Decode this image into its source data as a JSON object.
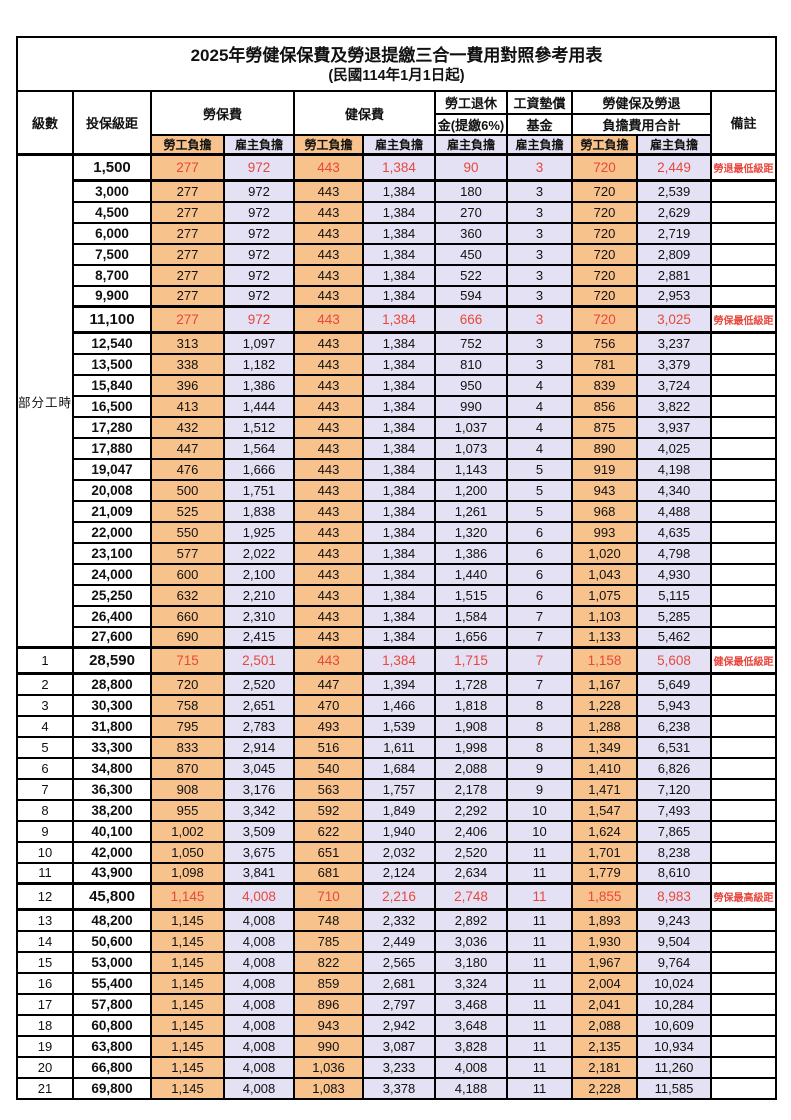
{
  "title": "2025年勞健保保費及勞退提繳三合一費用對照參考用表",
  "subtitle": "(民國114年1月1日起)",
  "header": {
    "level": "級數",
    "bracket": "投保級距",
    "labor_insurance": "勞保費",
    "health_insurance": "健保費",
    "pension_lines": [
      "勞工退休",
      "金(提繳6%)"
    ],
    "fund_lines": [
      "工資墊償",
      "基金"
    ],
    "total_lines": [
      "勞健保及勞退",
      "負擔費用合計"
    ],
    "note": "備註",
    "employee": "勞工負擔",
    "employer": "雇主負擔"
  },
  "part_time_label": "部分工時",
  "colors": {
    "employee_bg": "#F8C28C",
    "employer_bg": "#E3E1F3",
    "red_text": "#E8473D",
    "border": "#000000"
  },
  "rows": [
    {
      "lv": "",
      "br": "1,500",
      "v": [
        "277",
        "972",
        "443",
        "1,384",
        "90",
        "3",
        "720",
        "2,449"
      ],
      "note": "勞退最低級距",
      "red": true,
      "hl": true
    },
    {
      "lv": "",
      "br": "3,000",
      "v": [
        "277",
        "972",
        "443",
        "1,384",
        "180",
        "3",
        "720",
        "2,539"
      ],
      "note": ""
    },
    {
      "lv": "",
      "br": "4,500",
      "v": [
        "277",
        "972",
        "443",
        "1,384",
        "270",
        "3",
        "720",
        "2,629"
      ],
      "note": ""
    },
    {
      "lv": "",
      "br": "6,000",
      "v": [
        "277",
        "972",
        "443",
        "1,384",
        "360",
        "3",
        "720",
        "2,719"
      ],
      "note": ""
    },
    {
      "lv": "",
      "br": "7,500",
      "v": [
        "277",
        "972",
        "443",
        "1,384",
        "450",
        "3",
        "720",
        "2,809"
      ],
      "note": ""
    },
    {
      "lv": "",
      "br": "8,700",
      "v": [
        "277",
        "972",
        "443",
        "1,384",
        "522",
        "3",
        "720",
        "2,881"
      ],
      "note": ""
    },
    {
      "lv": "",
      "br": "9,900",
      "v": [
        "277",
        "972",
        "443",
        "1,384",
        "594",
        "3",
        "720",
        "2,953"
      ],
      "note": ""
    },
    {
      "lv": "",
      "br": "11,100",
      "v": [
        "277",
        "972",
        "443",
        "1,384",
        "666",
        "3",
        "720",
        "3,025"
      ],
      "note": "勞保最低級距",
      "red": true,
      "hl": true
    },
    {
      "lv": "",
      "br": "12,540",
      "v": [
        "313",
        "1,097",
        "443",
        "1,384",
        "752",
        "3",
        "756",
        "3,237"
      ],
      "note": ""
    },
    {
      "lv": "",
      "br": "13,500",
      "v": [
        "338",
        "1,182",
        "443",
        "1,384",
        "810",
        "3",
        "781",
        "3,379"
      ],
      "note": ""
    },
    {
      "lv": "",
      "br": "15,840",
      "v": [
        "396",
        "1,386",
        "443",
        "1,384",
        "950",
        "4",
        "839",
        "3,724"
      ],
      "note": ""
    },
    {
      "lv": "",
      "br": "16,500",
      "v": [
        "413",
        "1,444",
        "443",
        "1,384",
        "990",
        "4",
        "856",
        "3,822"
      ],
      "note": ""
    },
    {
      "lv": "",
      "br": "17,280",
      "v": [
        "432",
        "1,512",
        "443",
        "1,384",
        "1,037",
        "4",
        "875",
        "3,937"
      ],
      "note": ""
    },
    {
      "lv": "",
      "br": "17,880",
      "v": [
        "447",
        "1,564",
        "443",
        "1,384",
        "1,073",
        "4",
        "890",
        "4,025"
      ],
      "note": ""
    },
    {
      "lv": "",
      "br": "19,047",
      "v": [
        "476",
        "1,666",
        "443",
        "1,384",
        "1,143",
        "5",
        "919",
        "4,198"
      ],
      "note": ""
    },
    {
      "lv": "",
      "br": "20,008",
      "v": [
        "500",
        "1,751",
        "443",
        "1,384",
        "1,200",
        "5",
        "943",
        "4,340"
      ],
      "note": ""
    },
    {
      "lv": "",
      "br": "21,009",
      "v": [
        "525",
        "1,838",
        "443",
        "1,384",
        "1,261",
        "5",
        "968",
        "4,488"
      ],
      "note": ""
    },
    {
      "lv": "",
      "br": "22,000",
      "v": [
        "550",
        "1,925",
        "443",
        "1,384",
        "1,320",
        "6",
        "993",
        "4,635"
      ],
      "note": ""
    },
    {
      "lv": "",
      "br": "23,100",
      "v": [
        "577",
        "2,022",
        "443",
        "1,384",
        "1,386",
        "6",
        "1,020",
        "4,798"
      ],
      "note": ""
    },
    {
      "lv": "",
      "br": "24,000",
      "v": [
        "600",
        "2,100",
        "443",
        "1,384",
        "1,440",
        "6",
        "1,043",
        "4,930"
      ],
      "note": ""
    },
    {
      "lv": "",
      "br": "25,250",
      "v": [
        "632",
        "2,210",
        "443",
        "1,384",
        "1,515",
        "6",
        "1,075",
        "5,115"
      ],
      "note": ""
    },
    {
      "lv": "",
      "br": "26,400",
      "v": [
        "660",
        "2,310",
        "443",
        "1,384",
        "1,584",
        "7",
        "1,103",
        "5,285"
      ],
      "note": ""
    },
    {
      "lv": "",
      "br": "27,600",
      "v": [
        "690",
        "2,415",
        "443",
        "1,384",
        "1,656",
        "7",
        "1,133",
        "5,462"
      ],
      "note": ""
    },
    {
      "lv": "1",
      "br": "28,590",
      "v": [
        "715",
        "2,501",
        "443",
        "1,384",
        "1,715",
        "7",
        "1,158",
        "5,608"
      ],
      "note": "健保最低級距",
      "red": true,
      "hl": true
    },
    {
      "lv": "2",
      "br": "28,800",
      "v": [
        "720",
        "2,520",
        "447",
        "1,394",
        "1,728",
        "7",
        "1,167",
        "5,649"
      ],
      "note": ""
    },
    {
      "lv": "3",
      "br": "30,300",
      "v": [
        "758",
        "2,651",
        "470",
        "1,466",
        "1,818",
        "8",
        "1,228",
        "5,943"
      ],
      "note": ""
    },
    {
      "lv": "4",
      "br": "31,800",
      "v": [
        "795",
        "2,783",
        "493",
        "1,539",
        "1,908",
        "8",
        "1,288",
        "6,238"
      ],
      "note": ""
    },
    {
      "lv": "5",
      "br": "33,300",
      "v": [
        "833",
        "2,914",
        "516",
        "1,611",
        "1,998",
        "8",
        "1,349",
        "6,531"
      ],
      "note": ""
    },
    {
      "lv": "6",
      "br": "34,800",
      "v": [
        "870",
        "3,045",
        "540",
        "1,684",
        "2,088",
        "9",
        "1,410",
        "6,826"
      ],
      "note": ""
    },
    {
      "lv": "7",
      "br": "36,300",
      "v": [
        "908",
        "3,176",
        "563",
        "1,757",
        "2,178",
        "9",
        "1,471",
        "7,120"
      ],
      "note": ""
    },
    {
      "lv": "8",
      "br": "38,200",
      "v": [
        "955",
        "3,342",
        "592",
        "1,849",
        "2,292",
        "10",
        "1,547",
        "7,493"
      ],
      "note": ""
    },
    {
      "lv": "9",
      "br": "40,100",
      "v": [
        "1,002",
        "3,509",
        "622",
        "1,940",
        "2,406",
        "10",
        "1,624",
        "7,865"
      ],
      "note": ""
    },
    {
      "lv": "10",
      "br": "42,000",
      "v": [
        "1,050",
        "3,675",
        "651",
        "2,032",
        "2,520",
        "11",
        "1,701",
        "8,238"
      ],
      "note": ""
    },
    {
      "lv": "11",
      "br": "43,900",
      "v": [
        "1,098",
        "3,841",
        "681",
        "2,124",
        "2,634",
        "11",
        "1,779",
        "8,610"
      ],
      "note": ""
    },
    {
      "lv": "12",
      "br": "45,800",
      "v": [
        "1,145",
        "4,008",
        "710",
        "2,216",
        "2,748",
        "11",
        "1,855",
        "8,983"
      ],
      "note": "勞保最高級距",
      "red": true,
      "hl": true
    },
    {
      "lv": "13",
      "br": "48,200",
      "v": [
        "1,145",
        "4,008",
        "748",
        "2,332",
        "2,892",
        "11",
        "1,893",
        "9,243"
      ],
      "note": ""
    },
    {
      "lv": "14",
      "br": "50,600",
      "v": [
        "1,145",
        "4,008",
        "785",
        "2,449",
        "3,036",
        "11",
        "1,930",
        "9,504"
      ],
      "note": ""
    },
    {
      "lv": "15",
      "br": "53,000",
      "v": [
        "1,145",
        "4,008",
        "822",
        "2,565",
        "3,180",
        "11",
        "1,967",
        "9,764"
      ],
      "note": ""
    },
    {
      "lv": "16",
      "br": "55,400",
      "v": [
        "1,145",
        "4,008",
        "859",
        "2,681",
        "3,324",
        "11",
        "2,004",
        "10,024"
      ],
      "note": ""
    },
    {
      "lv": "17",
      "br": "57,800",
      "v": [
        "1,145",
        "4,008",
        "896",
        "2,797",
        "3,468",
        "11",
        "2,041",
        "10,284"
      ],
      "note": ""
    },
    {
      "lv": "18",
      "br": "60,800",
      "v": [
        "1,145",
        "4,008",
        "943",
        "2,942",
        "3,648",
        "11",
        "2,088",
        "10,609"
      ],
      "note": ""
    },
    {
      "lv": "19",
      "br": "63,800",
      "v": [
        "1,145",
        "4,008",
        "990",
        "3,087",
        "3,828",
        "11",
        "2,135",
        "10,934"
      ],
      "note": ""
    },
    {
      "lv": "20",
      "br": "66,800",
      "v": [
        "1,145",
        "4,008",
        "1,036",
        "3,233",
        "4,008",
        "11",
        "2,181",
        "11,260"
      ],
      "note": ""
    },
    {
      "lv": "21",
      "br": "69,800",
      "v": [
        "1,145",
        "4,008",
        "1,083",
        "3,378",
        "4,188",
        "11",
        "2,228",
        "11,585"
      ],
      "note": ""
    }
  ]
}
